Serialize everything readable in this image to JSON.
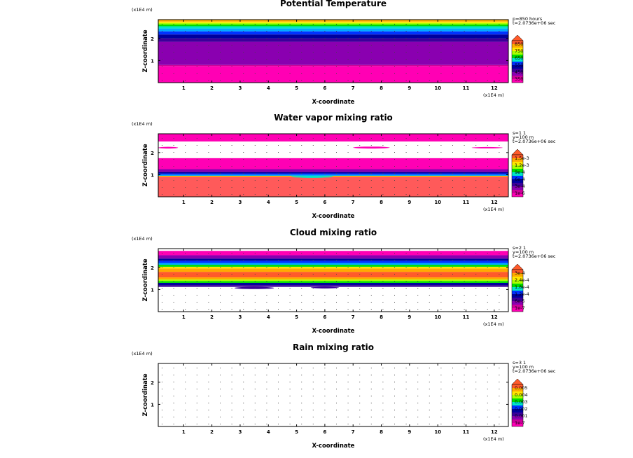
{
  "figure": {
    "background": "#ffffff",
    "dot_color": "#444444"
  },
  "chart_data": [
    {
      "type": "heatmap",
      "title": "Potential Temperature",
      "xlabel": "X-coordinate",
      "ylabel": "Z-coordinate",
      "x_unit": "(x1E4 m)",
      "y_unit": "(x1E4 m)",
      "xlim": [
        0.1,
        12.5
      ],
      "ylim": [
        0.0,
        2.85
      ],
      "x_ticks": [
        "1",
        "2",
        "3",
        "4",
        "5",
        "6",
        "7",
        "8",
        "9",
        "10",
        "11",
        "12"
      ],
      "y_ticks": [
        "1",
        "2"
      ],
      "info_lines": [
        "p=850 hours",
        "t=2.0736e+06 sec"
      ],
      "levels": [
        "350",
        "450",
        "550",
        "650",
        "750",
        "850"
      ],
      "palette": [
        "#ff00b4",
        "#cc0099",
        "#8a00b0",
        "#3a009a",
        "#00009e",
        "#0033ff",
        "#00aaff",
        "#00e6c8",
        "#00dc00",
        "#aaff00",
        "#ffe600",
        "#ffaa00",
        "#ff5a2a"
      ],
      "layers": [
        {
          "z0": 0.0,
          "z1": 0.75,
          "color": "#ff00b4"
        },
        {
          "z0": 0.75,
          "z1": 0.8,
          "color": "#cc0099"
        },
        {
          "z0": 0.8,
          "z1": 1.85,
          "color": "#8a00b0"
        },
        {
          "z0": 1.85,
          "z1": 2.0,
          "color": "#3a009a"
        },
        {
          "z0": 2.0,
          "z1": 2.18,
          "color": "#00009e"
        },
        {
          "z0": 2.18,
          "z1": 2.32,
          "color": "#0033ff"
        },
        {
          "z0": 2.32,
          "z1": 2.45,
          "color": "#00aaff"
        },
        {
          "z0": 2.45,
          "z1": 2.55,
          "color": "#00e6c8"
        },
        {
          "z0": 2.55,
          "z1": 2.63,
          "color": "#00dc00"
        },
        {
          "z0": 2.63,
          "z1": 2.7,
          "color": "#aaff00"
        },
        {
          "z0": 2.7,
          "z1": 2.76,
          "color": "#ffe600"
        },
        {
          "z0": 2.76,
          "z1": 2.85,
          "color": "#ffaa00"
        }
      ],
      "patches": []
    },
    {
      "type": "heatmap",
      "title": "Water vapor mixing ratio",
      "xlabel": "X-coordinate",
      "ylabel": "Z-coordinate",
      "x_unit": "(x1E4 m)",
      "y_unit": "(x1E4 m)",
      "xlim": [
        0.1,
        12.5
      ],
      "ylim": [
        0.0,
        2.85
      ],
      "x_ticks": [
        "1",
        "2",
        "3",
        "4",
        "5",
        "6",
        "7",
        "8",
        "9",
        "10",
        "11",
        "12"
      ],
      "y_ticks": [
        "1",
        "2"
      ],
      "info_lines": [
        "s=1 1",
        "y=100 m",
        "t=2.0736e+06 sec"
      ],
      "levels": [
        "1e-6",
        "3e-4",
        "6e-4",
        "9e-4",
        "1.2e-3",
        "1.5e-3"
      ],
      "palette": [
        "#ff00b4",
        "#cc0099",
        "#8a00b0",
        "#3a009a",
        "#00009e",
        "#0033ff",
        "#00aaff",
        "#00e6c8",
        "#00dc00",
        "#aaff00",
        "#ffe600",
        "#ffaa00",
        "#ff5a2a"
      ],
      "layers": [
        {
          "z0": 0.0,
          "z1": 0.9,
          "color": "#ff5a5a"
        },
        {
          "z0": 0.9,
          "z1": 0.95,
          "color": "#ffaa00"
        },
        {
          "z0": 0.95,
          "z1": 1.0,
          "color": "#00aaff"
        },
        {
          "z0": 1.0,
          "z1": 1.06,
          "color": "#0033ff"
        },
        {
          "z0": 1.06,
          "z1": 1.12,
          "color": "#00009e"
        },
        {
          "z0": 1.12,
          "z1": 1.25,
          "color": "#8a00b0"
        },
        {
          "z0": 1.25,
          "z1": 1.75,
          "color": "#ff00b4"
        },
        {
          "z0": 1.75,
          "z1": 2.5,
          "color": "#ffffff"
        },
        {
          "z0": 2.5,
          "z1": 2.85,
          "color": "#ff00b4"
        }
      ],
      "patches": [
        {
          "x0": 0.1,
          "x1": 0.8,
          "z0": 2.18,
          "z1": 2.26,
          "color": "#ff00b4"
        },
        {
          "x0": 7.0,
          "x1": 8.3,
          "z0": 2.18,
          "z1": 2.27,
          "color": "#ff00b4"
        },
        {
          "x0": 11.2,
          "x1": 12.3,
          "z0": 2.19,
          "z1": 2.25,
          "color": "#ff00b4"
        },
        {
          "x0": 4.8,
          "x1": 6.3,
          "z0": 0.86,
          "z1": 0.95,
          "color": "#00e6c8"
        }
      ]
    },
    {
      "type": "heatmap",
      "title": "Cloud mixing ratio",
      "xlabel": "X-coordinate",
      "ylabel": "Z-coordinate",
      "x_unit": "(x1E4 m)",
      "y_unit": "(x1E4 m)",
      "xlim": [
        0.1,
        12.5
      ],
      "ylim": [
        0.0,
        2.85
      ],
      "x_ticks": [
        "1",
        "2",
        "3",
        "4",
        "5",
        "6",
        "7",
        "8",
        "9",
        "10",
        "11",
        "12"
      ],
      "y_ticks": [
        "1",
        "2"
      ],
      "info_lines": [
        "s=2 1",
        "y=100 m",
        "t=2.0736e+06 sec"
      ],
      "levels": [
        "1e-7",
        "6e-5",
        "1.2e-4",
        "1.8e-4",
        "2.4e-4",
        "3e-4"
      ],
      "palette": [
        "#ff00b4",
        "#cc0099",
        "#8a00b0",
        "#3a009a",
        "#00009e",
        "#0033ff",
        "#00aaff",
        "#00e6c8",
        "#00dc00",
        "#aaff00",
        "#ffe600",
        "#ffaa00",
        "#ff5a2a"
      ],
      "layers": [
        {
          "z0": 0.0,
          "z1": 1.12,
          "color": "#ffffff"
        },
        {
          "z0": 1.12,
          "z1": 1.2,
          "color": "#3a009a"
        },
        {
          "z0": 1.2,
          "z1": 1.3,
          "color": "#00009e"
        },
        {
          "z0": 1.3,
          "z1": 1.38,
          "color": "#00dc00"
        },
        {
          "z0": 1.38,
          "z1": 1.45,
          "color": "#aaff00"
        },
        {
          "z0": 1.45,
          "z1": 1.55,
          "color": "#ffaa00"
        },
        {
          "z0": 1.55,
          "z1": 1.8,
          "color": "#ff5a2a"
        },
        {
          "z0": 1.8,
          "z1": 1.95,
          "color": "#ffaa00"
        },
        {
          "z0": 1.95,
          "z1": 2.03,
          "color": "#ffe600"
        },
        {
          "z0": 2.03,
          "z1": 2.12,
          "color": "#00dc00"
        },
        {
          "z0": 2.12,
          "z1": 2.2,
          "color": "#00aaff"
        },
        {
          "z0": 2.2,
          "z1": 2.3,
          "color": "#0033ff"
        },
        {
          "z0": 2.3,
          "z1": 2.4,
          "color": "#00009e"
        },
        {
          "z0": 2.4,
          "z1": 2.55,
          "color": "#8a00b0"
        },
        {
          "z0": 2.55,
          "z1": 2.75,
          "color": "#ff00b4"
        },
        {
          "z0": 2.75,
          "z1": 2.85,
          "color": "#ffffff"
        }
      ],
      "patches": [
        {
          "x0": 2.8,
          "x1": 4.2,
          "z0": 1.02,
          "z1": 1.12,
          "color": "#3a009a"
        },
        {
          "x0": 5.5,
          "x1": 6.5,
          "z0": 1.05,
          "z1": 1.12,
          "color": "#3a009a"
        }
      ]
    },
    {
      "type": "heatmap",
      "title": "Rain mixing ratio",
      "xlabel": "X-coordinate",
      "ylabel": "Z-coordinate",
      "x_unit": "(x1E4 m)",
      "y_unit": "(x1E4 m)",
      "xlim": [
        0.1,
        12.5
      ],
      "ylim": [
        0.0,
        2.85
      ],
      "x_ticks": [
        "1",
        "2",
        "3",
        "4",
        "5",
        "6",
        "7",
        "8",
        "9",
        "10",
        "11",
        "12"
      ],
      "y_ticks": [
        "1",
        "2"
      ],
      "info_lines": [
        "s=3 1",
        "y=100 m",
        "t=2.0736e+06 sec"
      ],
      "levels": [
        "1e-7",
        "0.001",
        "0.002",
        "0.003",
        "0.004",
        "0.005"
      ],
      "palette": [
        "#ff00b4",
        "#cc0099",
        "#8a00b0",
        "#3a009a",
        "#00009e",
        "#0033ff",
        "#00aaff",
        "#00e6c8",
        "#00dc00",
        "#aaff00",
        "#ffe600",
        "#ffaa00",
        "#ff5a2a"
      ],
      "layers": [
        {
          "z0": 0.0,
          "z1": 2.85,
          "color": "#ffffff"
        }
      ],
      "patches": []
    }
  ]
}
